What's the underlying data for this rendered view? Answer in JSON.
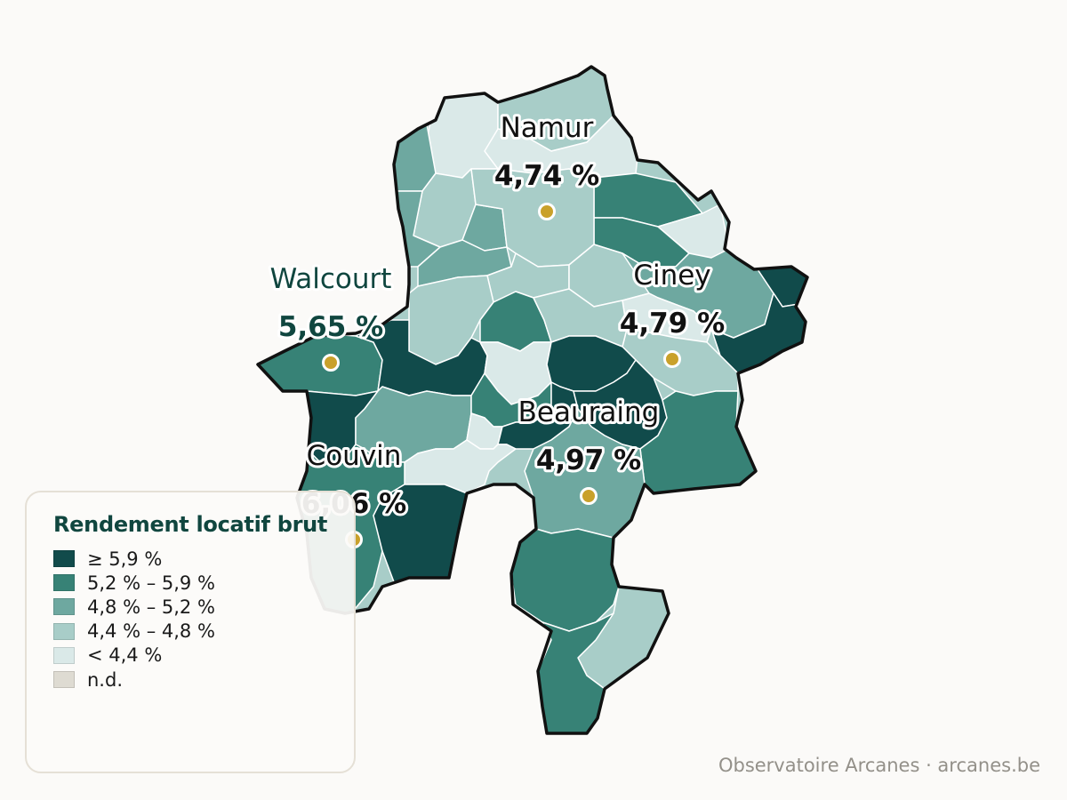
{
  "map": {
    "region_stroke_color": "#111111",
    "marker_color": "#c9a12b",
    "cities": [
      {
        "name": "Namur",
        "value": "4,74 %",
        "style": "light"
      },
      {
        "name": "Walcourt",
        "value": "5,65 %",
        "style": "dark"
      },
      {
        "name": "Ciney",
        "value": "4,79 %",
        "style": "light"
      },
      {
        "name": "Beauraing",
        "value": "4,97 %",
        "style": "light"
      },
      {
        "name": "Couvin",
        "value": "6,06 %",
        "style": "light"
      }
    ]
  },
  "legend": {
    "title": "Rendement locatif brut",
    "items": [
      {
        "label": "≥ 5,9 %",
        "color": "#114b4b"
      },
      {
        "label": "5,2 % – 5,9 %",
        "color": "#378276"
      },
      {
        "label": "4,8 % – 5,2 %",
        "color": "#6ea8a0"
      },
      {
        "label": "4,4 % – 4,8 %",
        "color": "#a8cdc8"
      },
      {
        "label": "< 4,4 %",
        "color": "#dae9e8"
      },
      {
        "label": "n.d.",
        "color": "#dedbd2"
      }
    ]
  },
  "credit": "Observatoire Arcanes · arcanes.be"
}
